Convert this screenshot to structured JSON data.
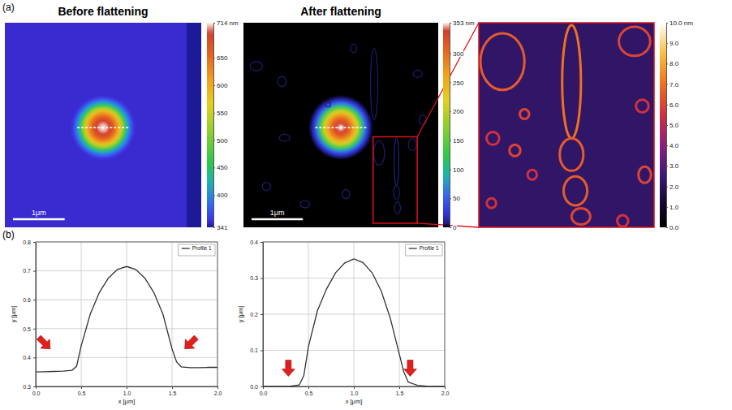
{
  "panel_labels": [
    "(a)",
    "(b)"
  ],
  "chart_data": [
    {
      "type": "heatmap",
      "title": "Before flattening",
      "xlim": [
        0,
        3.8
      ],
      "ylim": [
        0,
        4.0
      ],
      "background": 350,
      "bands": [
        {
          "x": [
            3.52,
            3.8
          ],
          "value": 342
        }
      ],
      "rings": {
        "center": [
          1.9,
          2.05
        ],
        "radius": [
          0.62,
          0.58,
          0.55,
          0.5,
          0.45,
          0.4,
          0.35,
          0.3,
          0.25,
          0.2,
          0.15,
          0.1,
          0.05,
          0.02
        ],
        "values": [
          352,
          365,
          385,
          420,
          470,
          530,
          580,
          620,
          650,
          675,
          693,
          705,
          711,
          714
        ]
      },
      "profile_line": {
        "x": [
          1.4,
          2.4
        ],
        "y": 2.05
      },
      "scale_bar": {
        "length": 1,
        "label": "1μm"
      },
      "colorbar": {
        "lim": [
          341,
          714
        ],
        "ticks": [
          341,
          400,
          450,
          500,
          550,
          600,
          650,
          {
            "value": 714,
            "label": "714 nm"
          }
        ]
      }
    },
    {
      "type": "heatmap",
      "title": "After flattening",
      "xlim": [
        0,
        3.8
      ],
      "ylim": [
        0,
        4.0
      ],
      "background": 0,
      "rings": {
        "center": [
          1.9,
          2.05
        ],
        "radius": [
          0.62,
          0.58,
          0.55,
          0.5,
          0.45,
          0.4,
          0.35,
          0.3,
          0.25,
          0.2,
          0.15,
          0.1,
          0.05,
          0.02
        ],
        "values": [
          3,
          10,
          25,
          60,
          105,
          160,
          205,
          245,
          280,
          305,
          325,
          340,
          350,
          353
        ]
      },
      "features": [
        {
          "cx": 2.646,
          "cy": 2.551,
          "rx": 0.108,
          "ry": 0.234,
          "value": 6
        },
        {
          "cx": 2.985,
          "cy": 2.718,
          "rx": 0.046,
          "ry": 0.468,
          "value": 6.5
        },
        {
          "cx": 2.985,
          "cy": 3.319,
          "rx": 0.058,
          "ry": 0.134,
          "value": 6
        },
        {
          "cx": 3.004,
          "cy": 3.619,
          "rx": 0.058,
          "ry": 0.12,
          "value": 6
        },
        {
          "cx": 3.294,
          "cy": 2.384,
          "rx": 0.077,
          "ry": 0.12,
          "value": 5.5
        },
        {
          "cx": 0.25,
          "cy": 0.85,
          "rx": 0.12,
          "ry": 0.09,
          "value": 6
        },
        {
          "cx": 0.75,
          "cy": 1.15,
          "rx": 0.08,
          "ry": 0.1,
          "value": 6
        },
        {
          "cx": 0.8,
          "cy": 2.25,
          "rx": 0.1,
          "ry": 0.07,
          "value": 6
        },
        {
          "cx": 0.45,
          "cy": 3.2,
          "rx": 0.08,
          "ry": 0.08,
          "value": 6
        },
        {
          "cx": 1.2,
          "cy": 3.55,
          "rx": 0.09,
          "ry": 0.07,
          "value": 6
        },
        {
          "cx": 2.0,
          "cy": 3.35,
          "rx": 0.07,
          "ry": 0.09,
          "value": 6
        },
        {
          "cx": 2.15,
          "cy": 0.5,
          "rx": 0.06,
          "ry": 0.08,
          "value": 6
        },
        {
          "cx": 2.55,
          "cy": 1.2,
          "rx": 0.07,
          "ry": 0.7,
          "value": 6
        },
        {
          "cx": 3.4,
          "cy": 1.0,
          "rx": 0.09,
          "ry": 0.07,
          "value": 6
        },
        {
          "cx": 3.5,
          "cy": 1.9,
          "rx": 0.07,
          "ry": 0.09,
          "value": 6
        },
        {
          "cx": 1.65,
          "cy": 1.6,
          "rx": 0.05,
          "ry": 0.05,
          "value": 6
        }
      ],
      "zoom_box": {
        "x": [
          2.53,
          3.39
        ],
        "y": [
          2.23,
          3.92
        ]
      },
      "profile_line": {
        "x": [
          1.4,
          2.4
        ],
        "y": 2.05
      },
      "scale_bar": {
        "length": 1,
        "label": "1μm"
      },
      "colorbar": {
        "lim": [
          0,
          353
        ],
        "ticks": [
          0,
          50,
          100,
          150,
          200,
          250,
          300,
          {
            "value": 353,
            "label": "353 nm"
          }
        ]
      }
    },
    {
      "type": "heatmap",
      "xlim": [
        2.53,
        3.39
      ],
      "ylim": [
        2.23,
        3.92
      ],
      "background": 2.2,
      "features": [
        {
          "cx": 2.646,
          "cy": 2.551,
          "rx": 0.108,
          "ry": 0.234,
          "value": 6.5
        },
        {
          "cx": 2.985,
          "cy": 2.718,
          "rx": 0.046,
          "ry": 0.468,
          "value": 7
        },
        {
          "cx": 2.985,
          "cy": 3.319,
          "rx": 0.058,
          "ry": 0.134,
          "value": 6.5
        },
        {
          "cx": 3.004,
          "cy": 3.619,
          "rx": 0.058,
          "ry": 0.12,
          "value": 6.5
        },
        {
          "cx": 3.031,
          "cy": 3.83,
          "rx": 0.046,
          "ry": 0.067,
          "value": 6
        },
        {
          "cx": 3.294,
          "cy": 2.384,
          "rx": 0.077,
          "ry": 0.12,
          "value": 6
        },
        {
          "cx": 2.599,
          "cy": 3.185,
          "rx": 0.031,
          "ry": 0.053,
          "value": 5.5
        },
        {
          "cx": 2.707,
          "cy": 3.285,
          "rx": 0.027,
          "ry": 0.047,
          "value": 6
        },
        {
          "cx": 2.792,
          "cy": 3.486,
          "rx": 0.023,
          "ry": 0.04,
          "value": 5.5
        },
        {
          "cx": 2.754,
          "cy": 2.985,
          "rx": 0.023,
          "ry": 0.04,
          "value": 6
        },
        {
          "cx": 3.332,
          "cy": 2.918,
          "rx": 0.031,
          "ry": 0.053,
          "value": 5.5
        },
        {
          "cx": 3.344,
          "cy": 3.486,
          "rx": 0.031,
          "ry": 0.067,
          "value": 6
        },
        {
          "cx": 3.236,
          "cy": 3.867,
          "rx": 0.027,
          "ry": 0.047,
          "value": 5.5
        },
        {
          "cx": 2.592,
          "cy": 3.72,
          "rx": 0.023,
          "ry": 0.04,
          "value": 5.5
        }
      ],
      "colorbar": {
        "lim": [
          0,
          10
        ],
        "ticks": [
          {
            "value": 0,
            "label": "0.0"
          },
          {
            "value": 1,
            "label": "1.0"
          },
          {
            "value": 2,
            "label": "2.0"
          },
          {
            "value": 3,
            "label": "3.0"
          },
          {
            "value": 4,
            "label": "4.0"
          },
          {
            "value": 5,
            "label": "5.0"
          },
          {
            "value": 6,
            "label": "6.0"
          },
          {
            "value": 7,
            "label": "7.0"
          },
          {
            "value": 8,
            "label": "8.0"
          },
          {
            "value": 9,
            "label": "9.0"
          },
          {
            "value": 10,
            "label": "10.0 nm"
          }
        ]
      }
    },
    {
      "type": "line",
      "xlabel": "x [μm]",
      "ylabel": "y [μm]",
      "x": [
        0,
        0.1,
        0.2,
        0.3,
        0.4,
        0.45,
        0.5,
        0.6,
        0.7,
        0.8,
        0.9,
        1.0,
        1.1,
        1.2,
        1.3,
        1.4,
        1.5,
        1.55,
        1.6,
        1.7,
        1.8,
        1.9,
        2.0
      ],
      "series": [
        {
          "name": "Profile 1",
          "color": "#333333",
          "values": [
            0.35,
            0.351,
            0.352,
            0.353,
            0.356,
            0.37,
            0.44,
            0.55,
            0.625,
            0.675,
            0.705,
            0.715,
            0.705,
            0.675,
            0.625,
            0.55,
            0.43,
            0.385,
            0.368,
            0.365,
            0.365,
            0.366,
            0.366
          ]
        }
      ],
      "xlim": [
        0,
        2
      ],
      "xticks": [
        {
          "value": 0,
          "label": "0.0"
        },
        0.5,
        {
          "value": 1,
          "label": "1.0"
        },
        1.5,
        {
          "value": 2,
          "label": "2.0"
        }
      ],
      "ylim": [
        0.3,
        0.8
      ],
      "yticks": [
        0.3,
        0.4,
        0.5,
        0.6,
        0.7,
        0.8
      ],
      "grid": true,
      "legend": "top-right"
    },
    {
      "type": "line",
      "xlabel": "x [μm]",
      "ylabel": "y [μm]",
      "x": [
        0,
        0.1,
        0.2,
        0.3,
        0.4,
        0.45,
        0.5,
        0.6,
        0.7,
        0.8,
        0.9,
        1.0,
        1.1,
        1.2,
        1.3,
        1.4,
        1.5,
        1.55,
        1.6,
        1.7,
        1.8,
        1.9,
        2.0
      ],
      "series": [
        {
          "name": "Profile 1",
          "color": "#333333",
          "values": [
            0,
            0,
            0,
            0.001,
            0.004,
            0.03,
            0.11,
            0.21,
            0.27,
            0.315,
            0.342,
            0.353,
            0.343,
            0.315,
            0.265,
            0.19,
            0.09,
            0.04,
            0.012,
            0.003,
            0.001,
            0,
            0
          ]
        }
      ],
      "xlim": [
        0,
        2
      ],
      "xticks": [
        {
          "value": 0,
          "label": "0.0"
        },
        0.5,
        {
          "value": 1,
          "label": "1.0"
        },
        1.5,
        {
          "value": 2,
          "label": "2.0"
        }
      ],
      "ylim": [
        0,
        0.4
      ],
      "yticks": [
        {
          "value": 0,
          "label": "0.0"
        },
        0.1,
        0.2,
        0.3,
        0.4
      ],
      "grid": true,
      "legend": "top-right"
    }
  ]
}
